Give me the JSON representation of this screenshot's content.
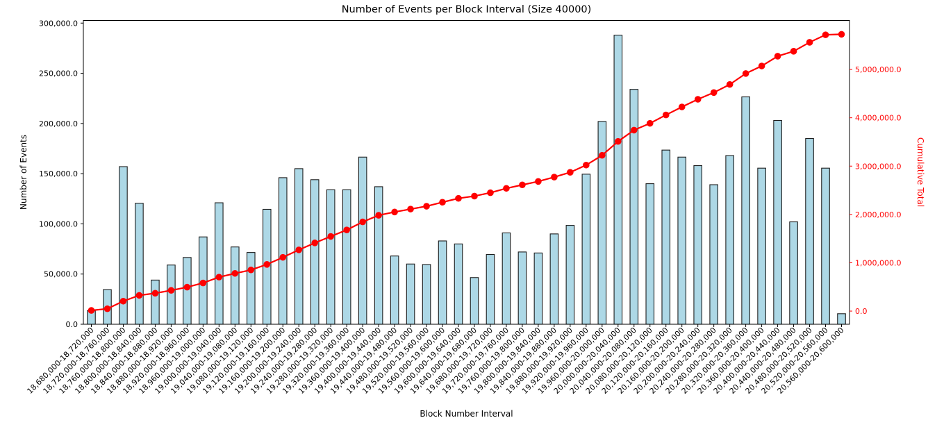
{
  "chart_data": {
    "type": "bar",
    "title": "Number of Events per Block Interval (Size 40000)",
    "xlabel": "Block Number Interval",
    "ylabel_left": "Number of Events",
    "ylabel_right": "Cumulative Total",
    "grid": false,
    "legend": "none",
    "background": "#ffffff",
    "bar_color": "#ADD8E6",
    "bar_edge_color": "#1c1c1c",
    "line_color": "#ff0000",
    "categories": [
      "18,680,000-18,720,000",
      "18,720,000-18,760,000",
      "18,760,000-18,800,000",
      "18,800,000-18,840,000",
      "18,840,000-18,880,000",
      "18,880,000-18,920,000",
      "18,920,000-18,960,000",
      "18,960,000-19,000,000",
      "19,000,000-19,040,000",
      "19,040,000-19,080,000",
      "19,080,000-19,120,000",
      "19,120,000-19,160,000",
      "19,160,000-19,200,000",
      "19,200,000-19,240,000",
      "19,240,000-19,280,000",
      "19,280,000-19,320,000",
      "19,320,000-19,360,000",
      "19,360,000-19,400,000",
      "19,400,000-19,440,000",
      "19,440,000-19,480,000",
      "19,480,000-19,520,000",
      "19,520,000-19,560,000",
      "19,560,000-19,600,000",
      "19,600,000-19,640,000",
      "19,640,000-19,680,000",
      "19,680,000-19,720,000",
      "19,720,000-19,760,000",
      "19,760,000-19,800,000",
      "19,800,000-19,840,000",
      "19,840,000-19,880,000",
      "19,880,000-19,920,000",
      "19,920,000-19,960,000",
      "19,960,000-20,000,000",
      "20,000,000-20,040,000",
      "20,040,000-20,080,000",
      "20,080,000-20,120,000",
      "20,120,000-20,160,000",
      "20,160,000-20,200,000",
      "20,200,000-20,240,000",
      "20,240,000-20,280,000",
      "20,280,000-20,320,000",
      "20,320,000-20,360,000",
      "20,360,000-20,400,000",
      "20,400,000-20,440,000",
      "20,440,000-20,480,000",
      "20,480,000-20,520,000",
      "20,520,000-20,560,000",
      "20,560,000-20,600,000"
    ],
    "series": [
      {
        "name": "Number of Events",
        "type": "bar",
        "axis": "left",
        "values": [
          13500,
          34500,
          157000,
          120500,
          44000,
          59000,
          66500,
          87000,
          121000,
          77000,
          71500,
          114500,
          146000,
          155000,
          144000,
          134000,
          134000,
          166500,
          137000,
          68000,
          60000,
          59500,
          83000,
          80000,
          46500,
          69500,
          91000,
          72000,
          71000,
          90000,
          98500,
          149500,
          202000,
          288000,
          234000,
          140000,
          173500,
          166500,
          158000,
          139000,
          168000,
          226500,
          155500,
          203000,
          102000,
          185000,
          155500,
          10500
        ]
      },
      {
        "name": "Cumulative Total",
        "type": "line",
        "axis": "right",
        "marker": "circle",
        "values": [
          13500,
          48000,
          205000,
          325500,
          369500,
          428500,
          495000,
          582000,
          703000,
          780000,
          851500,
          966000,
          1112000,
          1267000,
          1411000,
          1545000,
          1679000,
          1845500,
          1982500,
          2050500,
          2110500,
          2170000,
          2253000,
          2333000,
          2379500,
          2449000,
          2540000,
          2612000,
          2683000,
          2773000,
          2871500,
          3021000,
          3223000,
          3511000,
          3745000,
          3885000,
          4058500,
          4225000,
          4383000,
          4522000,
          4690000,
          4916500,
          5072000,
          5275000,
          5377000,
          5562000,
          5717500,
          5728000
        ]
      }
    ],
    "left_axis": {
      "tick_labels": [
        "0.0",
        "50,000.0",
        "100,000.0",
        "150,000.0",
        "200,000.0",
        "250,000.0",
        "300,000.0"
      ],
      "tick_values": [
        0,
        50000,
        100000,
        150000,
        200000,
        250000,
        300000
      ],
      "ylim": [
        0,
        302600
      ],
      "color": "#000000"
    },
    "right_axis": {
      "tick_labels": [
        "0.0",
        "1,000,000.0",
        "2,000,000.0",
        "3,000,000.0",
        "4,000,000.0",
        "5,000,000.0"
      ],
      "tick_values": [
        0,
        1000000,
        2000000,
        3000000,
        4000000,
        5000000
      ],
      "ylim": [
        -272225,
        6013725
      ],
      "color": "#ff0000"
    }
  }
}
